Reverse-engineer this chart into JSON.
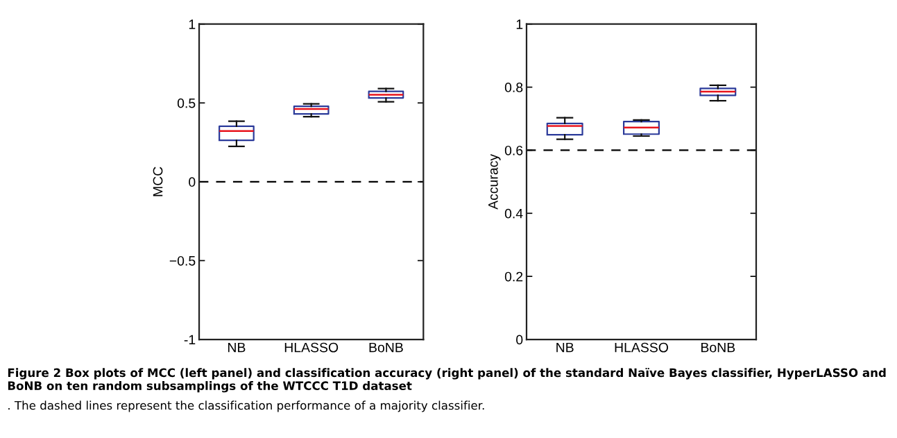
{
  "chart_data": [
    {
      "type": "box",
      "categories": [
        "NB",
        "HLASSO",
        "BoNB"
      ],
      "ylabel": "MCC",
      "ylim": [
        -1,
        1
      ],
      "yticks": [
        -1,
        {
          "value": -0.5,
          "label": "−0.5"
        },
        0,
        0.5,
        1
      ],
      "series": [
        {
          "color": "#2b3a9a",
          "boxes": [
            {
              "low": 0.224,
              "q1": 0.263,
              "median": 0.322,
              "q3": 0.352,
              "high": 0.384
            },
            {
              "low": 0.413,
              "q1": 0.43,
              "median": 0.462,
              "q3": 0.479,
              "high": 0.494
            },
            {
              "low": 0.507,
              "q1": 0.532,
              "median": 0.552,
              "q3": 0.573,
              "high": 0.591
            }
          ]
        }
      ],
      "ref_lines": [
        {
          "axis": "y",
          "value": 0,
          "color": "#000000",
          "line_style": "dashed"
        }
      ],
      "grid": false,
      "annotations": [
        "Figure 2 Box plots of MCC (left panel) and classification accuracy (right panel) of the standard Naïve Bayes classifier, HyperLASSO and BoNB on ten random subsamplings of the WTCCC T1D dataset",
        ". The dashed lines represent the classification performance of a majority classifier."
      ]
    },
    {
      "type": "box",
      "categories": [
        "NB",
        "HLASSO",
        "BoNB"
      ],
      "ylabel": "Accuracy",
      "ylim": [
        0,
        1
      ],
      "yticks": [
        0,
        0.2,
        0.4,
        0.6,
        0.8,
        1
      ],
      "series": [
        {
          "color": "#2b3a9a",
          "boxes": [
            {
              "low": 0.635,
              "q1": 0.649,
              "median": 0.677,
              "q3": 0.685,
              "high": 0.703
            },
            {
              "low": 0.645,
              "q1": 0.651,
              "median": 0.672,
              "q3": 0.691,
              "high": 0.696
            },
            {
              "low": 0.757,
              "q1": 0.774,
              "median": 0.786,
              "q3": 0.796,
              "high": 0.806
            }
          ]
        }
      ],
      "ref_lines": [
        {
          "axis": "y",
          "value": 0.6,
          "color": "#000000",
          "line_style": "dashed"
        }
      ],
      "grid": false
    }
  ]
}
